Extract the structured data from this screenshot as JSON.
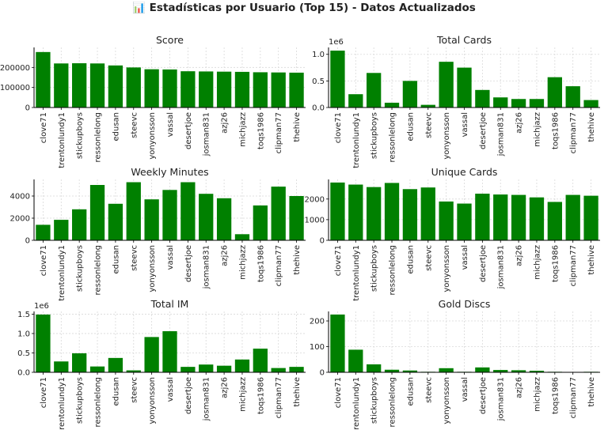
{
  "title": "📊 Estadísticas por Usuario (Top 15) - Datos Actualizados",
  "style": {
    "bar_color": "#008000",
    "axis_color": "#000000",
    "grid_color": "#d9d9d9"
  },
  "chart_data": [
    {
      "type": "bar",
      "title": "Score",
      "categories": [
        "clove71",
        "trentonlundy1",
        "stickupboys",
        "ressonlelong",
        "edusan",
        "steevc",
        "yonyonsson",
        "vassal",
        "desertjoe",
        "josman831",
        "azj26",
        "michjazz",
        "toqs1986",
        "clipman77",
        "thehive"
      ],
      "values": [
        277000,
        220000,
        221000,
        220000,
        210000,
        200000,
        191000,
        190000,
        181000,
        180000,
        179000,
        178000,
        176000,
        175000,
        174000
      ],
      "ylim": [
        0,
        300000
      ],
      "yticks": [
        0,
        100000,
        200000
      ],
      "ytick_labels": [
        "0",
        "100000",
        "200000"
      ],
      "offset_label": "",
      "grid": true
    },
    {
      "type": "bar",
      "title": "Total Cards",
      "categories": [
        "clove71",
        "trentonlundy1",
        "stickupboys",
        "ressonlelong",
        "edusan",
        "steevc",
        "yonyonsson",
        "vassal",
        "desertjoe",
        "josman831",
        "azj26",
        "michjazz",
        "toqs1986",
        "clipman77",
        "thehive"
      ],
      "values": [
        1070000,
        250000,
        650000,
        90000,
        500000,
        50000,
        860000,
        750000,
        330000,
        190000,
        160000,
        160000,
        570000,
        400000,
        140000
      ],
      "ylim": [
        0,
        1130000
      ],
      "yticks": [
        0,
        500000,
        1000000
      ],
      "ytick_labels": [
        "0.0",
        "0.5",
        "1.0"
      ],
      "offset_label": "1e6",
      "grid": true
    },
    {
      "type": "bar",
      "title": "Weekly Minutes",
      "categories": [
        "clove71",
        "trentonlundy1",
        "stickupboys",
        "ressonlelong",
        "edusan",
        "steevc",
        "yonyonsson",
        "vassal",
        "desertjoe",
        "josman831",
        "azj26",
        "michjazz",
        "toqs1986",
        "clipman77",
        "thehive"
      ],
      "values": [
        1400,
        1850,
        2800,
        5000,
        3300,
        5250,
        3700,
        4550,
        5250,
        4200,
        3800,
        550,
        3150,
        4850,
        4000
      ],
      "ylim": [
        0,
        5500
      ],
      "yticks": [
        0,
        2000,
        4000
      ],
      "ytick_labels": [
        "0",
        "2000",
        "4000"
      ],
      "offset_label": "",
      "grid": true
    },
    {
      "type": "bar",
      "title": "Unique Cards",
      "categories": [
        "clove71",
        "trentonlundy1",
        "stickupboys",
        "ressonlelong",
        "edusan",
        "steevc",
        "yonyonsson",
        "vassal",
        "desertjoe",
        "josman831",
        "azj26",
        "michjazz",
        "toqs1986",
        "clipman77",
        "thehive"
      ],
      "values": [
        2800,
        2700,
        2580,
        2780,
        2480,
        2560,
        1880,
        1780,
        2260,
        2220,
        2200,
        2080,
        1860,
        2200,
        2160
      ],
      "ylim": [
        0,
        2950
      ],
      "yticks": [
        0,
        1000,
        2000
      ],
      "ytick_labels": [
        "0",
        "1000",
        "2000"
      ],
      "offset_label": "",
      "grid": true
    },
    {
      "type": "bar",
      "title": "Total IM",
      "categories": [
        "clove71",
        "trentonlundy1",
        "stickupboys",
        "ressonlelong",
        "edusan",
        "steevc",
        "yonyonsson",
        "vassal",
        "desertjoe",
        "josman831",
        "azj26",
        "michjazz",
        "toqs1986",
        "clipman77",
        "thehive"
      ],
      "values": [
        1490000,
        280000,
        490000,
        150000,
        370000,
        50000,
        910000,
        1060000,
        140000,
        200000,
        170000,
        330000,
        610000,
        110000,
        140000
      ],
      "ylim": [
        0,
        1570000
      ],
      "yticks": [
        0,
        500000,
        1000000,
        1500000
      ],
      "ytick_labels": [
        "0.0",
        "0.5",
        "1.0",
        "1.5"
      ],
      "offset_label": "1e6",
      "grid": true
    },
    {
      "type": "bar",
      "title": "Gold Discs",
      "categories": [
        "clove71",
        "trentonlundy1",
        "stickupboys",
        "ressonlelong",
        "edusan",
        "steevc",
        "yonyonsson",
        "vassal",
        "desertjoe",
        "josman831",
        "azj26",
        "michjazz",
        "toqs1986",
        "clipman77",
        "thehive"
      ],
      "values": [
        225,
        88,
        31,
        10,
        7,
        2,
        16,
        2,
        19,
        9,
        8,
        6,
        2,
        1,
        2
      ],
      "ylim": [
        0,
        237
      ],
      "yticks": [
        0,
        100,
        200
      ],
      "ytick_labels": [
        "0",
        "100",
        "200"
      ],
      "offset_label": "",
      "grid": true
    }
  ]
}
